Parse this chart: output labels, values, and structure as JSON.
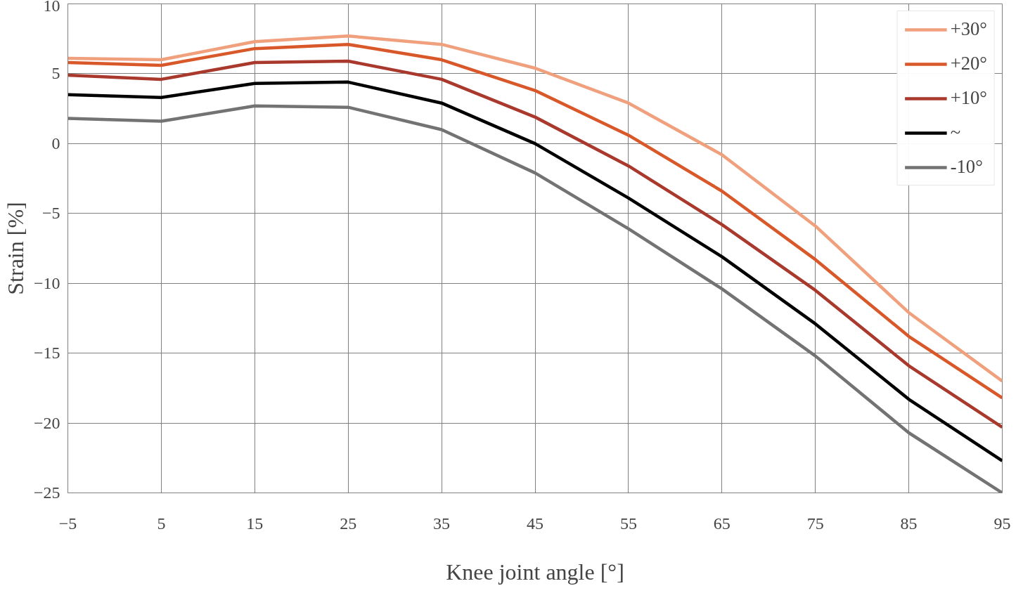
{
  "chart_data": {
    "type": "line",
    "xlabel": "Knee joint angle [°]",
    "ylabel": "Strain [%]",
    "x": [
      -5,
      5,
      15,
      25,
      35,
      45,
      55,
      65,
      75,
      85,
      95
    ],
    "xlim": [
      -5,
      95
    ],
    "xticks": [
      -5,
      5,
      15,
      25,
      35,
      45,
      55,
      65,
      75,
      85,
      95
    ],
    "ylim": [
      -25,
      10
    ],
    "yticks": [
      -25,
      -20,
      -15,
      -10,
      -5,
      0,
      5,
      10
    ],
    "grid": true,
    "legend": "top right",
    "line_style": "solid",
    "marker": "none",
    "series": [
      {
        "name": "+30°",
        "color": "#f0a07c",
        "values": [
          6.1,
          6.0,
          7.3,
          7.7,
          7.1,
          5.4,
          2.9,
          -0.8,
          -5.9,
          -12.1,
          -17.0
        ]
      },
      {
        "name": "+20°",
        "color": "#d9582a",
        "values": [
          5.8,
          5.6,
          6.8,
          7.1,
          6.0,
          3.8,
          0.6,
          -3.4,
          -8.3,
          -13.8,
          -18.2
        ]
      },
      {
        "name": "+10°",
        "color": "#a8392c",
        "values": [
          4.9,
          4.6,
          5.8,
          5.9,
          4.6,
          1.9,
          -1.6,
          -5.8,
          -10.5,
          -15.9,
          -20.3
        ]
      },
      {
        "name": "~",
        "color": "#000000",
        "values": [
          3.5,
          3.3,
          4.3,
          4.4,
          2.9,
          0.0,
          -3.9,
          -8.1,
          -12.9,
          -18.3,
          -22.7
        ]
      },
      {
        "name": "-10°",
        "color": "#737373",
        "values": [
          1.8,
          1.6,
          2.7,
          2.6,
          1.0,
          -2.1,
          -6.1,
          -10.4,
          -15.2,
          -20.7,
          -25.0
        ]
      }
    ]
  }
}
